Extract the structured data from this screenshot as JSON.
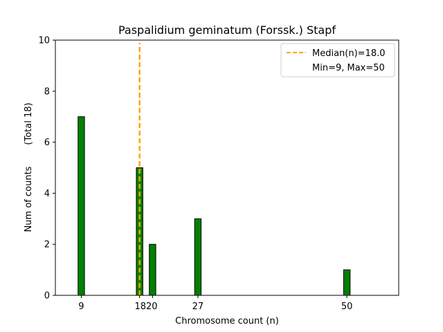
{
  "chart_data": {
    "type": "bar",
    "title": "Paspalidium geminatum (Forssk.) Stapf",
    "xlabel": "Chromosome count (n)",
    "ylabel_main": "Num of counts",
    "ylabel_total": "(Total 18)",
    "xlim": [
      5,
      58
    ],
    "ylim": [
      0,
      10
    ],
    "x_ticks": [
      9,
      18,
      20,
      27,
      50
    ],
    "x_tick_labels": [
      "9",
      "1820",
      "27",
      "50"
    ],
    "x_tick_label_positions": [
      9,
      19,
      27,
      50
    ],
    "y_ticks": [
      0,
      2,
      4,
      6,
      8,
      10
    ],
    "bars": [
      {
        "x": 9,
        "value": 7
      },
      {
        "x": 18,
        "value": 5
      },
      {
        "x": 20,
        "value": 2
      },
      {
        "x": 27,
        "value": 3
      },
      {
        "x": 50,
        "value": 1
      }
    ],
    "bar_width": 1,
    "bar_color": "#008000",
    "bar_edge_color": "#000000",
    "median": 18.0,
    "median_color": "#ffa500",
    "legend": {
      "position": "top-right",
      "entries": [
        "Median(n)=18.0",
        "Min=9, Max=50"
      ]
    }
  }
}
